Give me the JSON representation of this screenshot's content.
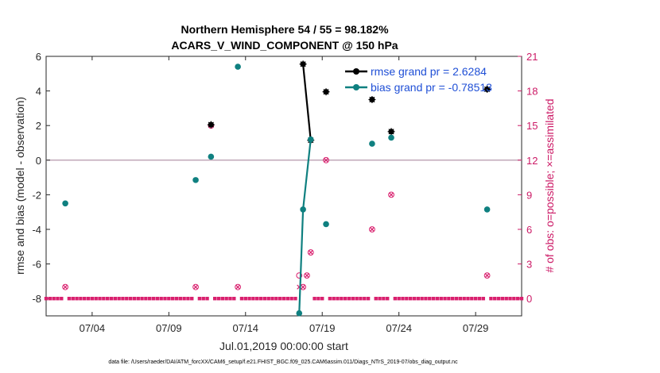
{
  "chart_data": {
    "type": "line",
    "title": "Northern Hemisphere 54 / 55 = 98.182%",
    "subtitle": "ACARS_V_WIND_COMPONENT @ 150 hPa",
    "xlabel": "Jul.01,2019 00:00:00 start",
    "ylabel": "rmse and bias (model - observation)",
    "ylabel_right": "# of obs: o=possible; ×=assimilated",
    "x_ticks": [
      {
        "day": 4,
        "label": "07/04"
      },
      {
        "day": 9,
        "label": "07/09"
      },
      {
        "day": 14,
        "label": "07/14"
      },
      {
        "day": 19,
        "label": "07/19"
      },
      {
        "day": 24,
        "label": "07/24"
      },
      {
        "day": 29,
        "label": "07/29"
      }
    ],
    "xlim": [
      1,
      32
    ],
    "ylim": [
      -9,
      6
    ],
    "y_ticks": [
      -8,
      -6,
      -4,
      -2,
      0,
      2,
      4,
      6
    ],
    "y_right_lim": [
      -1.5,
      21
    ],
    "y_right_ticks": [
      0,
      3,
      6,
      9,
      12,
      15,
      18,
      21
    ],
    "zero_line": 0,
    "colors": {
      "rmse": "#000000",
      "bias": "#0f8080",
      "obs": "#d9206e",
      "zero_line": "#c0a8b8",
      "legend_text": "#1f4fd6",
      "right_axis": "#cc1a66"
    },
    "legend_position": "top-right",
    "series": [
      {
        "name": "rmse grand pr = 2.6284",
        "color": "#000000",
        "x": [
          11.75,
          17.75,
          18.25,
          19.25,
          22.25,
          23.5,
          29.75
        ],
        "y": [
          2.05,
          5.55,
          1.15,
          3.95,
          3.5,
          1.65,
          4.1
        ]
      },
      {
        "name": "bias grand pr = -0.78513",
        "color": "#0f8080",
        "x": [
          2.25,
          10.75,
          11.75,
          13.5,
          17.5,
          17.75,
          18.25,
          19.25,
          22.25,
          23.5,
          29.75
        ],
        "y": [
          -2.5,
          -1.15,
          0.2,
          5.4,
          -8.85,
          -2.85,
          1.2,
          -3.7,
          0.95,
          1.3,
          -2.85
        ]
      }
    ],
    "obs_possible": {
      "x": [
        2.25,
        10.75,
        11.75,
        13.5,
        17.5,
        17.75,
        18.0,
        18.25,
        19.25,
        22.25,
        23.5,
        29.75
      ],
      "y": [
        1,
        1,
        15,
        1,
        2,
        1,
        2,
        4,
        12,
        6,
        9,
        2
      ]
    },
    "obs_assimilated": {
      "x": [
        2.25,
        10.75,
        11.75,
        13.5,
        17.5,
        17.75,
        18.0,
        18.25,
        19.25,
        22.25,
        23.5,
        29.75
      ],
      "y": [
        1,
        1,
        15,
        1,
        1,
        1,
        2,
        4,
        12,
        6,
        9,
        2
      ]
    },
    "gap_y": -8
  },
  "footer": "data file: /Users/raeder/DAI/ATM_forcXX/CAM6_setup/f.e21.FHIST_BGC.f09_025.CAM6assim.011/Diags_NTrS_2019-07/obs_diag_output.nc"
}
